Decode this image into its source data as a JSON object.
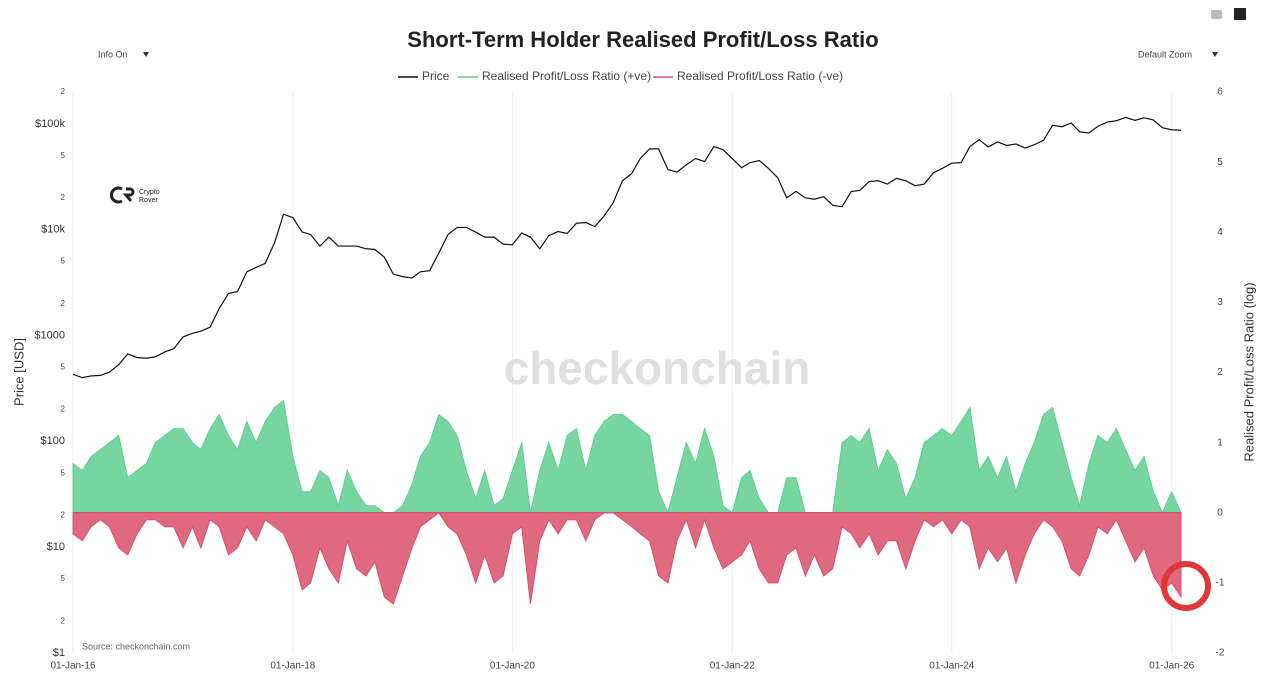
{
  "chart_data": {
    "type": "line",
    "title": "Short-Term Holder Realised Profit/Loss Ratio",
    "controls": [
      "Info On",
      "Default Zoom"
    ],
    "watermark": "checkonchain",
    "logo_text": [
      "Crypto",
      "Rover"
    ],
    "source": "Source: checkonchain.com",
    "ylabel": "Price [USD]",
    "y2label": "Realised Profit/Loss Ratio (log)",
    "ylog": true,
    "xgrid": true,
    "x": [
      "2016-01-01",
      "2016-02-01",
      "2016-03-01",
      "2016-04-01",
      "2016-05-01",
      "2016-06-01",
      "2016-07-01",
      "2016-08-01",
      "2016-09-01",
      "2016-10-01",
      "2016-11-01",
      "2016-12-01",
      "2017-01-01",
      "2017-02-01",
      "2017-03-01",
      "2017-04-01",
      "2017-05-01",
      "2017-06-01",
      "2017-07-01",
      "2017-08-01",
      "2017-09-01",
      "2017-10-01",
      "2017-11-01",
      "2017-12-01",
      "2018-01-01",
      "2018-02-01",
      "2018-03-01",
      "2018-04-01",
      "2018-05-01",
      "2018-06-01",
      "2018-07-01",
      "2018-08-01",
      "2018-09-01",
      "2018-10-01",
      "2018-11-01",
      "2018-12-01",
      "2019-01-01",
      "2019-02-01",
      "2019-03-01",
      "2019-04-01",
      "2019-05-01",
      "2019-06-01",
      "2019-07-01",
      "2019-08-01",
      "2019-09-01",
      "2019-10-01",
      "2019-11-01",
      "2019-12-01",
      "2020-01-01",
      "2020-02-01",
      "2020-03-01",
      "2020-04-01",
      "2020-05-01",
      "2020-06-01",
      "2020-07-01",
      "2020-08-01",
      "2020-09-01",
      "2020-10-01",
      "2020-11-01",
      "2020-12-01",
      "2021-01-01",
      "2021-02-01",
      "2021-03-01",
      "2021-04-01",
      "2021-05-01",
      "2021-06-01",
      "2021-07-01",
      "2021-08-01",
      "2021-09-01",
      "2021-10-01",
      "2021-11-01",
      "2021-12-01",
      "2022-01-01",
      "2022-02-01",
      "2022-03-01",
      "2022-04-01",
      "2022-05-01",
      "2022-06-01",
      "2022-07-01",
      "2022-08-01",
      "2022-09-01",
      "2022-10-01",
      "2022-11-01",
      "2022-12-01",
      "2023-01-01",
      "2023-02-01",
      "2023-03-01",
      "2023-04-01",
      "2023-05-01",
      "2023-06-01",
      "2023-07-01",
      "2023-08-01",
      "2023-09-01",
      "2023-10-01",
      "2023-11-01",
      "2023-12-01",
      "2024-01-01",
      "2024-02-01",
      "2024-03-01",
      "2024-04-01",
      "2024-05-01",
      "2024-06-01",
      "2024-07-01",
      "2024-08-01",
      "2024-09-01",
      "2024-10-01",
      "2024-11-01",
      "2024-12-01",
      "2025-01-01",
      "2025-02-01",
      "2025-03-01",
      "2025-04-01",
      "2025-05-01",
      "2025-06-01",
      "2025-07-01",
      "2025-08-01",
      "2025-09-01",
      "2025-10-01",
      "2025-11-01",
      "2025-12-01",
      "2026-01-01",
      "2026-02-01"
    ],
    "xlim": [
      "2016-01-01",
      "2026-02-01"
    ],
    "xticks": [
      {
        "value": "2016-01-01",
        "label": "01-Jan-16"
      },
      {
        "value": "2018-01-01",
        "label": "01-Jan-18"
      },
      {
        "value": "2020-01-01",
        "label": "01-Jan-20"
      },
      {
        "value": "2022-01-01",
        "label": "01-Jan-22"
      },
      {
        "value": "2024-01-01",
        "label": "01-Jan-24"
      },
      {
        "value": "2026-01-01",
        "label": "01-Jan-26"
      }
    ],
    "ylim": [
      1,
      200000
    ],
    "yticks": [
      {
        "value": 1,
        "label": "$1"
      },
      2,
      5,
      {
        "value": 10,
        "label": "$10"
      },
      {
        "value": 20,
        "label": "2"
      },
      {
        "value": 50,
        "label": "5"
      },
      {
        "value": 100,
        "label": "$100"
      },
      {
        "value": 200,
        "label": "2"
      },
      {
        "value": 500,
        "label": "5"
      },
      {
        "value": 1000,
        "label": "$1000"
      },
      {
        "value": 2000,
        "label": "2"
      },
      {
        "value": 5000,
        "label": "5"
      },
      {
        "value": 10000,
        "label": "$10k"
      },
      {
        "value": 20000,
        "label": "2"
      },
      {
        "value": 50000,
        "label": "5"
      },
      {
        "value": 100000,
        "label": "$100k"
      },
      {
        "value": 200000,
        "label": "2"
      }
    ],
    "y2lim": [
      -2,
      6
    ],
    "y2ticks": [
      -2,
      -1,
      0,
      1,
      2,
      3,
      4,
      5,
      6
    ],
    "series": [
      {
        "name": "Price",
        "color": "#111111",
        "values": [
          430,
          400,
          415,
          420,
          450,
          530,
          670,
          620,
          610,
          630,
          700,
          750,
          970,
          1050,
          1100,
          1200,
          1800,
          2500,
          2600,
          4000,
          4400,
          4800,
          7500,
          14000,
          13000,
          9500,
          9000,
          7000,
          8500,
          7000,
          7000,
          7000,
          6600,
          6500,
          5500,
          3800,
          3600,
          3500,
          4000,
          4100,
          6000,
          9000,
          10500,
          10500,
          9500,
          8500,
          8500,
          7300,
          7200,
          9300,
          8500,
          6600,
          8800,
          9600,
          9200,
          11500,
          11700,
          10700,
          13500,
          18000,
          29000,
          34000,
          47000,
          58000,
          58000,
          37000,
          35000,
          41000,
          47000,
          44000,
          61000,
          57000,
          47000,
          38500,
          43000,
          45000,
          38000,
          31000,
          20000,
          23000,
          20000,
          19400,
          20500,
          17000,
          16500,
          23000,
          23500,
          28500,
          29000,
          27000,
          30500,
          29000,
          26000,
          27000,
          34500,
          38000,
          42500,
          43000,
          61000,
          71000,
          60500,
          67500,
          62500,
          64500,
          59000,
          63500,
          70000,
          97000,
          94000,
          102000,
          84000,
          82000,
          95000,
          104000,
          107000,
          115000,
          108000,
          114000,
          109000,
          92000,
          88000,
          87000
        ]
      },
      {
        "name": "Realised Profit/Loss Ratio (+ve)",
        "color": "#5fcf8f",
        "axis": "y2",
        "values": [
          0.7,
          0.6,
          0.8,
          0.9,
          1.0,
          1.1,
          0.5,
          0.6,
          0.7,
          1.0,
          1.1,
          1.2,
          1.2,
          1.0,
          0.9,
          1.2,
          1.4,
          1.1,
          0.9,
          1.3,
          1.0,
          1.3,
          1.5,
          1.6,
          0.8,
          0.3,
          0.3,
          0.6,
          0.5,
          0.1,
          0.6,
          0.3,
          0.1,
          0.1,
          0,
          0,
          0.1,
          0.4,
          0.8,
          1.0,
          1.4,
          1.3,
          1.1,
          0.6,
          0.2,
          0.6,
          0.1,
          0.2,
          0.6,
          1.0,
          0,
          0.6,
          1.0,
          0.6,
          1.1,
          1.2,
          0.6,
          1.1,
          1.3,
          1.4,
          1.4,
          1.3,
          1.2,
          1.1,
          0.3,
          0,
          0.5,
          1.0,
          0.7,
          1.2,
          0.8,
          0.1,
          0,
          0.5,
          0.6,
          0.2,
          0,
          0,
          0.5,
          0.5,
          0,
          0,
          0,
          0,
          1.0,
          1.1,
          1.0,
          1.2,
          0.6,
          0.9,
          0.7,
          0.2,
          0.5,
          1.0,
          1.1,
          1.2,
          1.1,
          1.3,
          1.5,
          0.6,
          0.8,
          0.5,
          0.8,
          0.3,
          0.7,
          1.0,
          1.4,
          1.5,
          1.0,
          0.5,
          0.1,
          0.7,
          1.1,
          1.0,
          1.2,
          0.9,
          0.6,
          0.8,
          0.3,
          0,
          0.3,
          0
        ]
      },
      {
        "name": "Realised Profit/Loss Ratio (-ve)",
        "color": "#d9506a",
        "axis": "y2",
        "values": [
          -0.3,
          -0.4,
          -0.2,
          -0.1,
          -0.2,
          -0.5,
          -0.6,
          -0.3,
          -0.1,
          -0.1,
          -0.2,
          -0.2,
          -0.5,
          -0.2,
          -0.5,
          -0.1,
          -0.2,
          -0.6,
          -0.5,
          -0.2,
          -0.4,
          -0.1,
          -0.2,
          -0.3,
          -0.6,
          -1.1,
          -1.0,
          -0.5,
          -0.8,
          -1.0,
          -0.4,
          -0.8,
          -0.9,
          -0.7,
          -1.2,
          -1.3,
          -0.9,
          -0.5,
          -0.2,
          -0.1,
          0,
          -0.2,
          -0.3,
          -0.6,
          -1.0,
          -0.6,
          -1.0,
          -0.9,
          -0.3,
          -0.2,
          -1.3,
          -0.4,
          -0.1,
          -0.3,
          -0.1,
          -0.1,
          -0.4,
          -0.1,
          0,
          0,
          -0.1,
          -0.2,
          -0.3,
          -0.4,
          -0.9,
          -1.0,
          -0.4,
          -0.1,
          -0.5,
          -0.1,
          -0.5,
          -0.8,
          -0.7,
          -0.6,
          -0.4,
          -0.8,
          -1.0,
          -1.0,
          -0.6,
          -0.5,
          -0.9,
          -0.6,
          -0.9,
          -0.8,
          -0.2,
          -0.3,
          -0.5,
          -0.3,
          -0.6,
          -0.4,
          -0.4,
          -0.8,
          -0.4,
          -0.1,
          -0.2,
          -0.1,
          -0.3,
          -0.1,
          -0.2,
          -0.8,
          -0.5,
          -0.7,
          -0.5,
          -1.0,
          -0.6,
          -0.3,
          -0.1,
          -0.2,
          -0.4,
          -0.8,
          -0.9,
          -0.6,
          -0.2,
          -0.3,
          -0.1,
          -0.4,
          -0.7,
          -0.5,
          -0.9,
          -1.1,
          -1.0,
          -1.2
        ]
      }
    ]
  }
}
